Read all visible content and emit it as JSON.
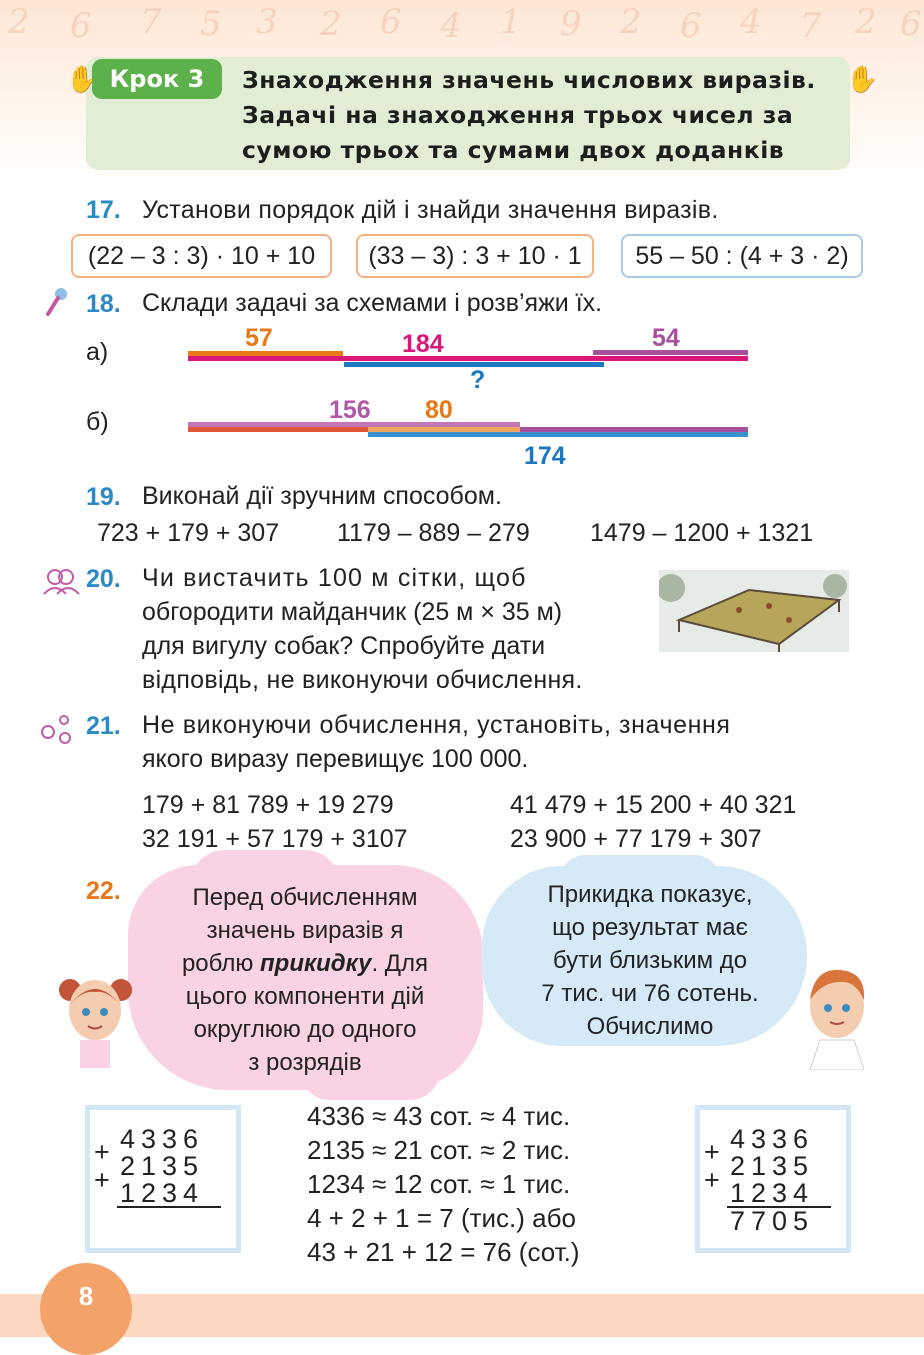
{
  "header": {
    "step_label": "Крок 3",
    "title_lines": [
      "Знаходження значень числових виразів.",
      "Задачі на знаходження трьох чисел за",
      "сумою трьох та сумами двох доданків"
    ]
  },
  "task17": {
    "number": "17.",
    "text": "Установи порядок дій і знайди значення виразів.",
    "expressions": [
      "(22 – 3 : 3) · 10 + 10",
      "(33 – 3) : 3 + 10 · 1",
      "55 – 50 : (4 + 3 · 2)"
    ],
    "box_colors": [
      "#f2b17e",
      "#f2b17e",
      "#a9cbe8"
    ]
  },
  "task18": {
    "number": "18.",
    "text": "Склади задачі за схемами і розв’яжи їх.",
    "a": {
      "label": "а)",
      "v1": "57",
      "v2": "184",
      "v3": "54",
      "q": "?"
    },
    "b": {
      "label": "б)",
      "v1": "156",
      "v2": "80",
      "v3": "174"
    },
    "colors": {
      "orange": "#e67817",
      "pink": "#d9187a",
      "purple": "#a7509e",
      "blue": "#1c78bf"
    }
  },
  "task19": {
    "number": "19.",
    "text": "Виконай дії зручним способом.",
    "expressions": [
      "723 + 179 + 307",
      "1179 – 889 – 279",
      "1479 – 1200 + 1321"
    ]
  },
  "task20": {
    "number": "20.",
    "lines": [
      "Чи вистачить 100 м сітки, щоб",
      "обгородити майданчик (25 м × 35 м)",
      "для вигулу собак? Спробуйте дати",
      "відповідь, не виконуючи обчислення."
    ]
  },
  "task21": {
    "number": "21.",
    "lines": [
      "Не виконуючи обчислення, установіть, значення",
      "якого виразу перевищує 100 000."
    ],
    "expressions": [
      "179 + 81 789 + 19 279",
      "41 479 + 15 200 + 40 321",
      "32 191 + 57 179 + 3107",
      "23 900 + 77 179 + 307"
    ]
  },
  "task22": {
    "number": "22.",
    "girl_bubble": [
      "Перед обчисленням",
      "значень виразів я",
      "роблю ",
      "прикидку",
      ". Для",
      "цього компоненти дій",
      "округлюю до одного",
      "з розрядів"
    ],
    "boy_bubble": [
      "Прикидка показує,",
      "що результат має",
      "бути близьким до",
      "7 тис. чи 76 сотень.",
      "Обчислимо"
    ],
    "left_card": {
      "rows": [
        "4336",
        "2135",
        "1234"
      ],
      "signs": [
        "+",
        "+"
      ]
    },
    "estimates": [
      "4336 ≈ 43 сот. ≈ 4 тис.",
      "2135 ≈ 21 сот. ≈ 2 тис.",
      "1234 ≈ 12 сот. ≈ 1 тис.",
      "4 + 2 + 1 = 7 (тис.) або",
      "43 + 21 + 12 = 76 (сот.)"
    ],
    "right_card": {
      "rows": [
        "4336",
        "2135",
        "1234"
      ],
      "signs": [
        "+",
        "+"
      ],
      "result": "7705"
    }
  },
  "footer": {
    "page_number": "8"
  },
  "background_digits": [
    "2",
    "6",
    "7",
    "5",
    "3",
    "2",
    "6",
    "4",
    "1",
    "9",
    "2",
    "6",
    "4",
    "7",
    "2",
    "6"
  ]
}
